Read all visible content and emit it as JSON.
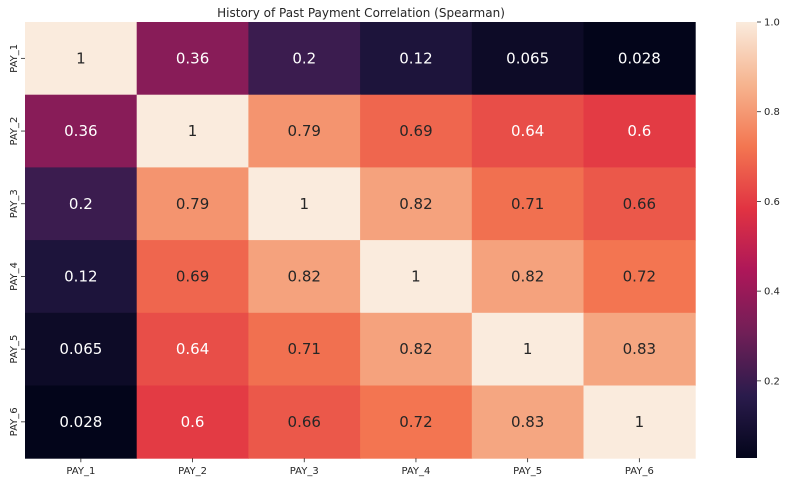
{
  "chart_data": {
    "type": "heatmap",
    "title": "History of Past Payment Correlation (Spearman)",
    "x_categories": [
      "PAY_1",
      "PAY_2",
      "PAY_3",
      "PAY_4",
      "PAY_5",
      "PAY_6"
    ],
    "y_categories": [
      "PAY_1",
      "PAY_2",
      "PAY_3",
      "PAY_4",
      "PAY_5",
      "PAY_6"
    ],
    "values": [
      [
        1,
        0.36,
        0.2,
        0.12,
        0.065,
        0.028
      ],
      [
        0.36,
        1,
        0.79,
        0.69,
        0.64,
        0.6
      ],
      [
        0.2,
        0.79,
        1,
        0.82,
        0.71,
        0.66
      ],
      [
        0.12,
        0.69,
        0.82,
        1,
        0.82,
        0.72
      ],
      [
        0.065,
        0.64,
        0.71,
        0.82,
        1,
        0.83
      ],
      [
        0.028,
        0.6,
        0.66,
        0.72,
        0.83,
        1
      ]
    ],
    "cell_labels": [
      [
        "1",
        "0.36",
        "0.2",
        "0.12",
        "0.065",
        "0.028"
      ],
      [
        "0.36",
        "1",
        "0.79",
        "0.69",
        "0.64",
        "0.6"
      ],
      [
        "0.2",
        "0.79",
        "1",
        "0.82",
        "0.71",
        "0.66"
      ],
      [
        "0.12",
        "0.69",
        "0.82",
        "1",
        "0.82",
        "0.72"
      ],
      [
        "0.065",
        "0.64",
        "0.71",
        "0.82",
        "1",
        "0.83"
      ],
      [
        "0.028",
        "0.6",
        "0.66",
        "0.72",
        "0.83",
        "1"
      ]
    ],
    "colorbar": {
      "vmin": 0.028,
      "vmax": 1.0,
      "ticks": [
        0.2,
        0.4,
        0.6,
        0.8,
        1.0
      ],
      "tick_labels": [
        "0.2",
        "0.4",
        "0.6",
        "0.8",
        "1.0"
      ],
      "colormap": "rocket",
      "stops": [
        "#03051a",
        "#2a1b4c",
        "#701f57",
        "#ad1759",
        "#e13342",
        "#f37651",
        "#f6b48f",
        "#faebdd"
      ]
    }
  }
}
